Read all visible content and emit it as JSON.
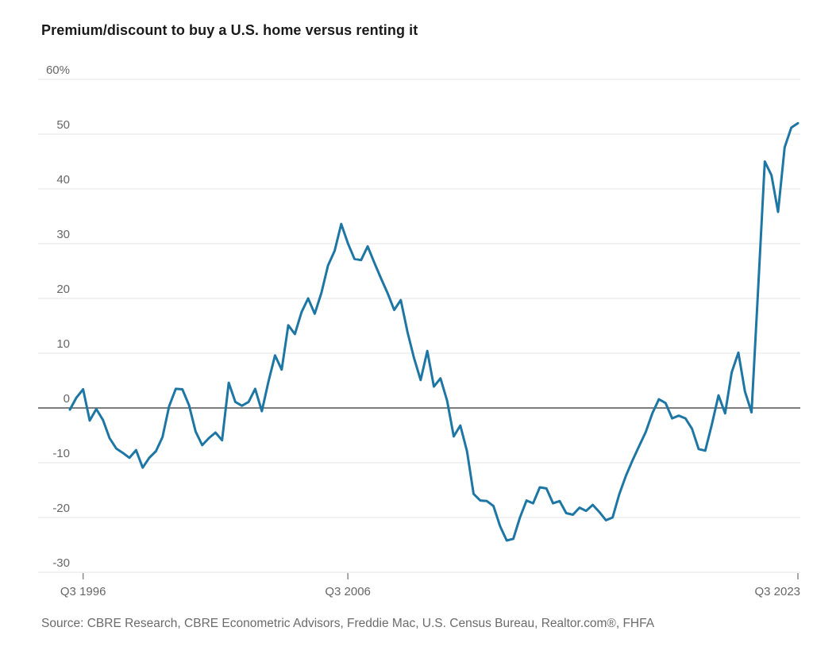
{
  "title": "Premium/discount to buy a U.S. home versus renting it",
  "source": "Source: CBRE Research, CBRE Econometric Advisors, Freddie Mac, U.S. Census Bureau, Realtor.com®, FHFA",
  "colors": {
    "line": "#1d76a3",
    "gridline": "#e6e6e6",
    "zero_line": "#7d7d7d",
    "tick": "#8c8c8c",
    "axis_text": "#666666",
    "title_text": "#1a1a1a",
    "source_text": "#6b6b6b",
    "background": "#ffffff"
  },
  "chart_data": {
    "type": "line",
    "title": "Premium/discount to buy a U.S. home versus renting it",
    "unit": "percent",
    "frequency": "quarterly",
    "x_start": "1996 Q1",
    "x_end": "2023 Q3",
    "xlabel": "",
    "ylabel": "",
    "ylim": [
      -30,
      60
    ],
    "grid": "horizontal",
    "legend": "none",
    "y_ticks": [
      60,
      50,
      40,
      30,
      20,
      10,
      0,
      -10,
      -20,
      -30
    ],
    "y_tick_labels": [
      "60%",
      "50",
      "40",
      "30",
      "20",
      "10",
      "0",
      "-10",
      "-20",
      "-30"
    ],
    "x_tick_labels": [
      "Q3 1996",
      "Q3 2006",
      "Q3 2023"
    ],
    "x_tick_quarter_indices": [
      2,
      42,
      110
    ],
    "series": [
      {
        "name": "Premium/discount to buy vs rent",
        "values": [
          -0.3,
          1.9,
          3.4,
          -2.3,
          -0.2,
          -2.2,
          -5.5,
          -7.4,
          -8.2,
          -9.1,
          -7.7,
          -10.9,
          -9.1,
          -7.9,
          -5.3,
          0.3,
          3.5,
          3.4,
          0.5,
          -4.3,
          -6.8,
          -5.5,
          -4.5,
          -5.9,
          4.6,
          1.1,
          0.4,
          1.1,
          3.5,
          -0.6,
          4.8,
          9.6,
          7.0,
          15.1,
          13.5,
          17.5,
          20.0,
          17.2,
          21.0,
          26.0,
          28.7,
          33.6,
          30.1,
          27.2,
          27.0,
          29.5,
          26.5,
          23.7,
          21.0,
          17.9,
          19.7,
          13.9,
          9.1,
          5.1,
          10.4,
          3.9,
          5.4,
          1.3,
          -5.2,
          -3.2,
          -7.9,
          -15.7,
          -16.9,
          -17.0,
          -17.9,
          -21.6,
          -24.2,
          -23.9,
          -20.0,
          -16.9,
          -17.4,
          -14.5,
          -14.7,
          -17.4,
          -17.0,
          -19.2,
          -19.5,
          -18.2,
          -18.8,
          -17.7,
          -19.0,
          -20.5,
          -20.0,
          -15.8,
          -12.4,
          -9.6,
          -7.0,
          -4.4,
          -1.0,
          1.6,
          0.9,
          -1.9,
          -1.4,
          -1.9,
          -3.8,
          -7.5,
          -7.8,
          -3.0,
          2.3,
          -1.0,
          6.5,
          10.1,
          3.0,
          -0.8,
          22.0,
          45.0,
          42.5,
          35.8,
          47.6,
          51.2,
          52.0
        ]
      }
    ]
  }
}
